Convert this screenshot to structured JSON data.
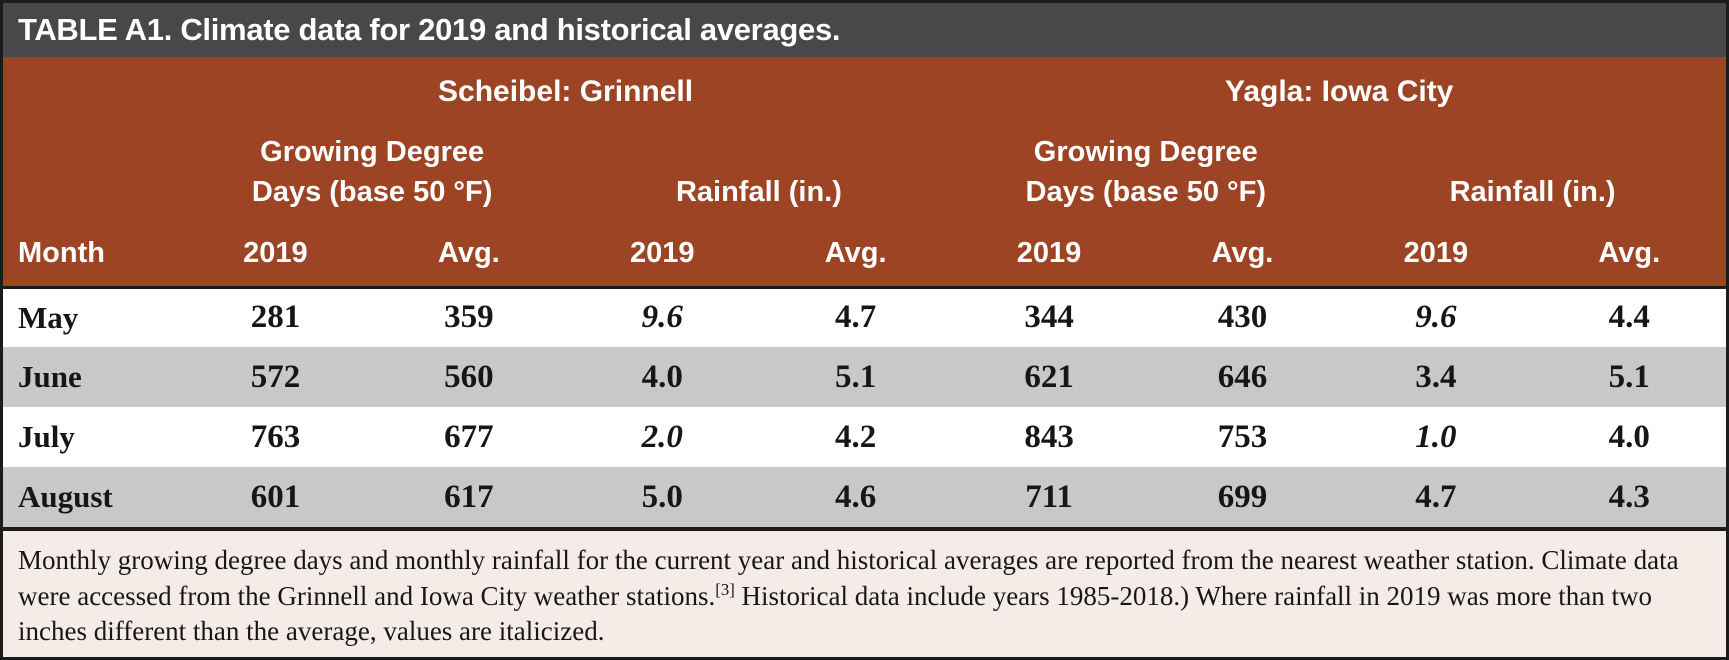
{
  "title": "TABLE A1. Climate data for 2019 and historical averages.",
  "stations": [
    {
      "name": "Scheibel: Grinnell"
    },
    {
      "name": "Yagla: Iowa City"
    }
  ],
  "group_headers": {
    "gdd_line1": "Growing Degree",
    "gdd_line2": "Days (base 50 °F)",
    "rainfall": "Rainfall (in.)"
  },
  "sub_headers": {
    "month": "Month",
    "year": "2019",
    "avg": "Avg."
  },
  "rows": [
    {
      "month": "May",
      "values": [
        {
          "v": "281"
        },
        {
          "v": "359"
        },
        {
          "v": "9.6",
          "italic": true
        },
        {
          "v": "4.7"
        },
        {
          "v": "344"
        },
        {
          "v": "430"
        },
        {
          "v": "9.6",
          "italic": true
        },
        {
          "v": "4.4"
        }
      ]
    },
    {
      "month": "June",
      "values": [
        {
          "v": "572"
        },
        {
          "v": "560"
        },
        {
          "v": "4.0"
        },
        {
          "v": "5.1"
        },
        {
          "v": "621"
        },
        {
          "v": "646"
        },
        {
          "v": "3.4"
        },
        {
          "v": "5.1"
        }
      ]
    },
    {
      "month": "July",
      "values": [
        {
          "v": "763"
        },
        {
          "v": "677"
        },
        {
          "v": "2.0",
          "italic": true
        },
        {
          "v": "4.2"
        },
        {
          "v": "843"
        },
        {
          "v": "753"
        },
        {
          "v": "1.0",
          "italic": true
        },
        {
          "v": "4.0"
        }
      ]
    },
    {
      "month": "August",
      "values": [
        {
          "v": "601"
        },
        {
          "v": "617"
        },
        {
          "v": "5.0"
        },
        {
          "v": "4.6"
        },
        {
          "v": "711"
        },
        {
          "v": "699"
        },
        {
          "v": "4.7"
        },
        {
          "v": "4.3"
        }
      ]
    }
  ],
  "footnote": {
    "text_before_ref": "Monthly growing degree days and monthly rainfall for the current year and historical averages are reported from the nearest weather station. Climate data were accessed from the Grinnell and Iowa City weather stations.",
    "ref": "[3]",
    "text_after_ref": " Historical data include years 1985-2018.) Where rainfall in 2019 was more than two inches different than the average, values are italicized."
  },
  "colors": {
    "title_bar_bg": "#48484a",
    "header_bg": "#9d4425",
    "stripe_row_bg": "#c8c8cb",
    "footnote_bg": "#f6ece7",
    "border": "#1b1b1b",
    "text": "#161616",
    "header_text": "#ffffff"
  }
}
